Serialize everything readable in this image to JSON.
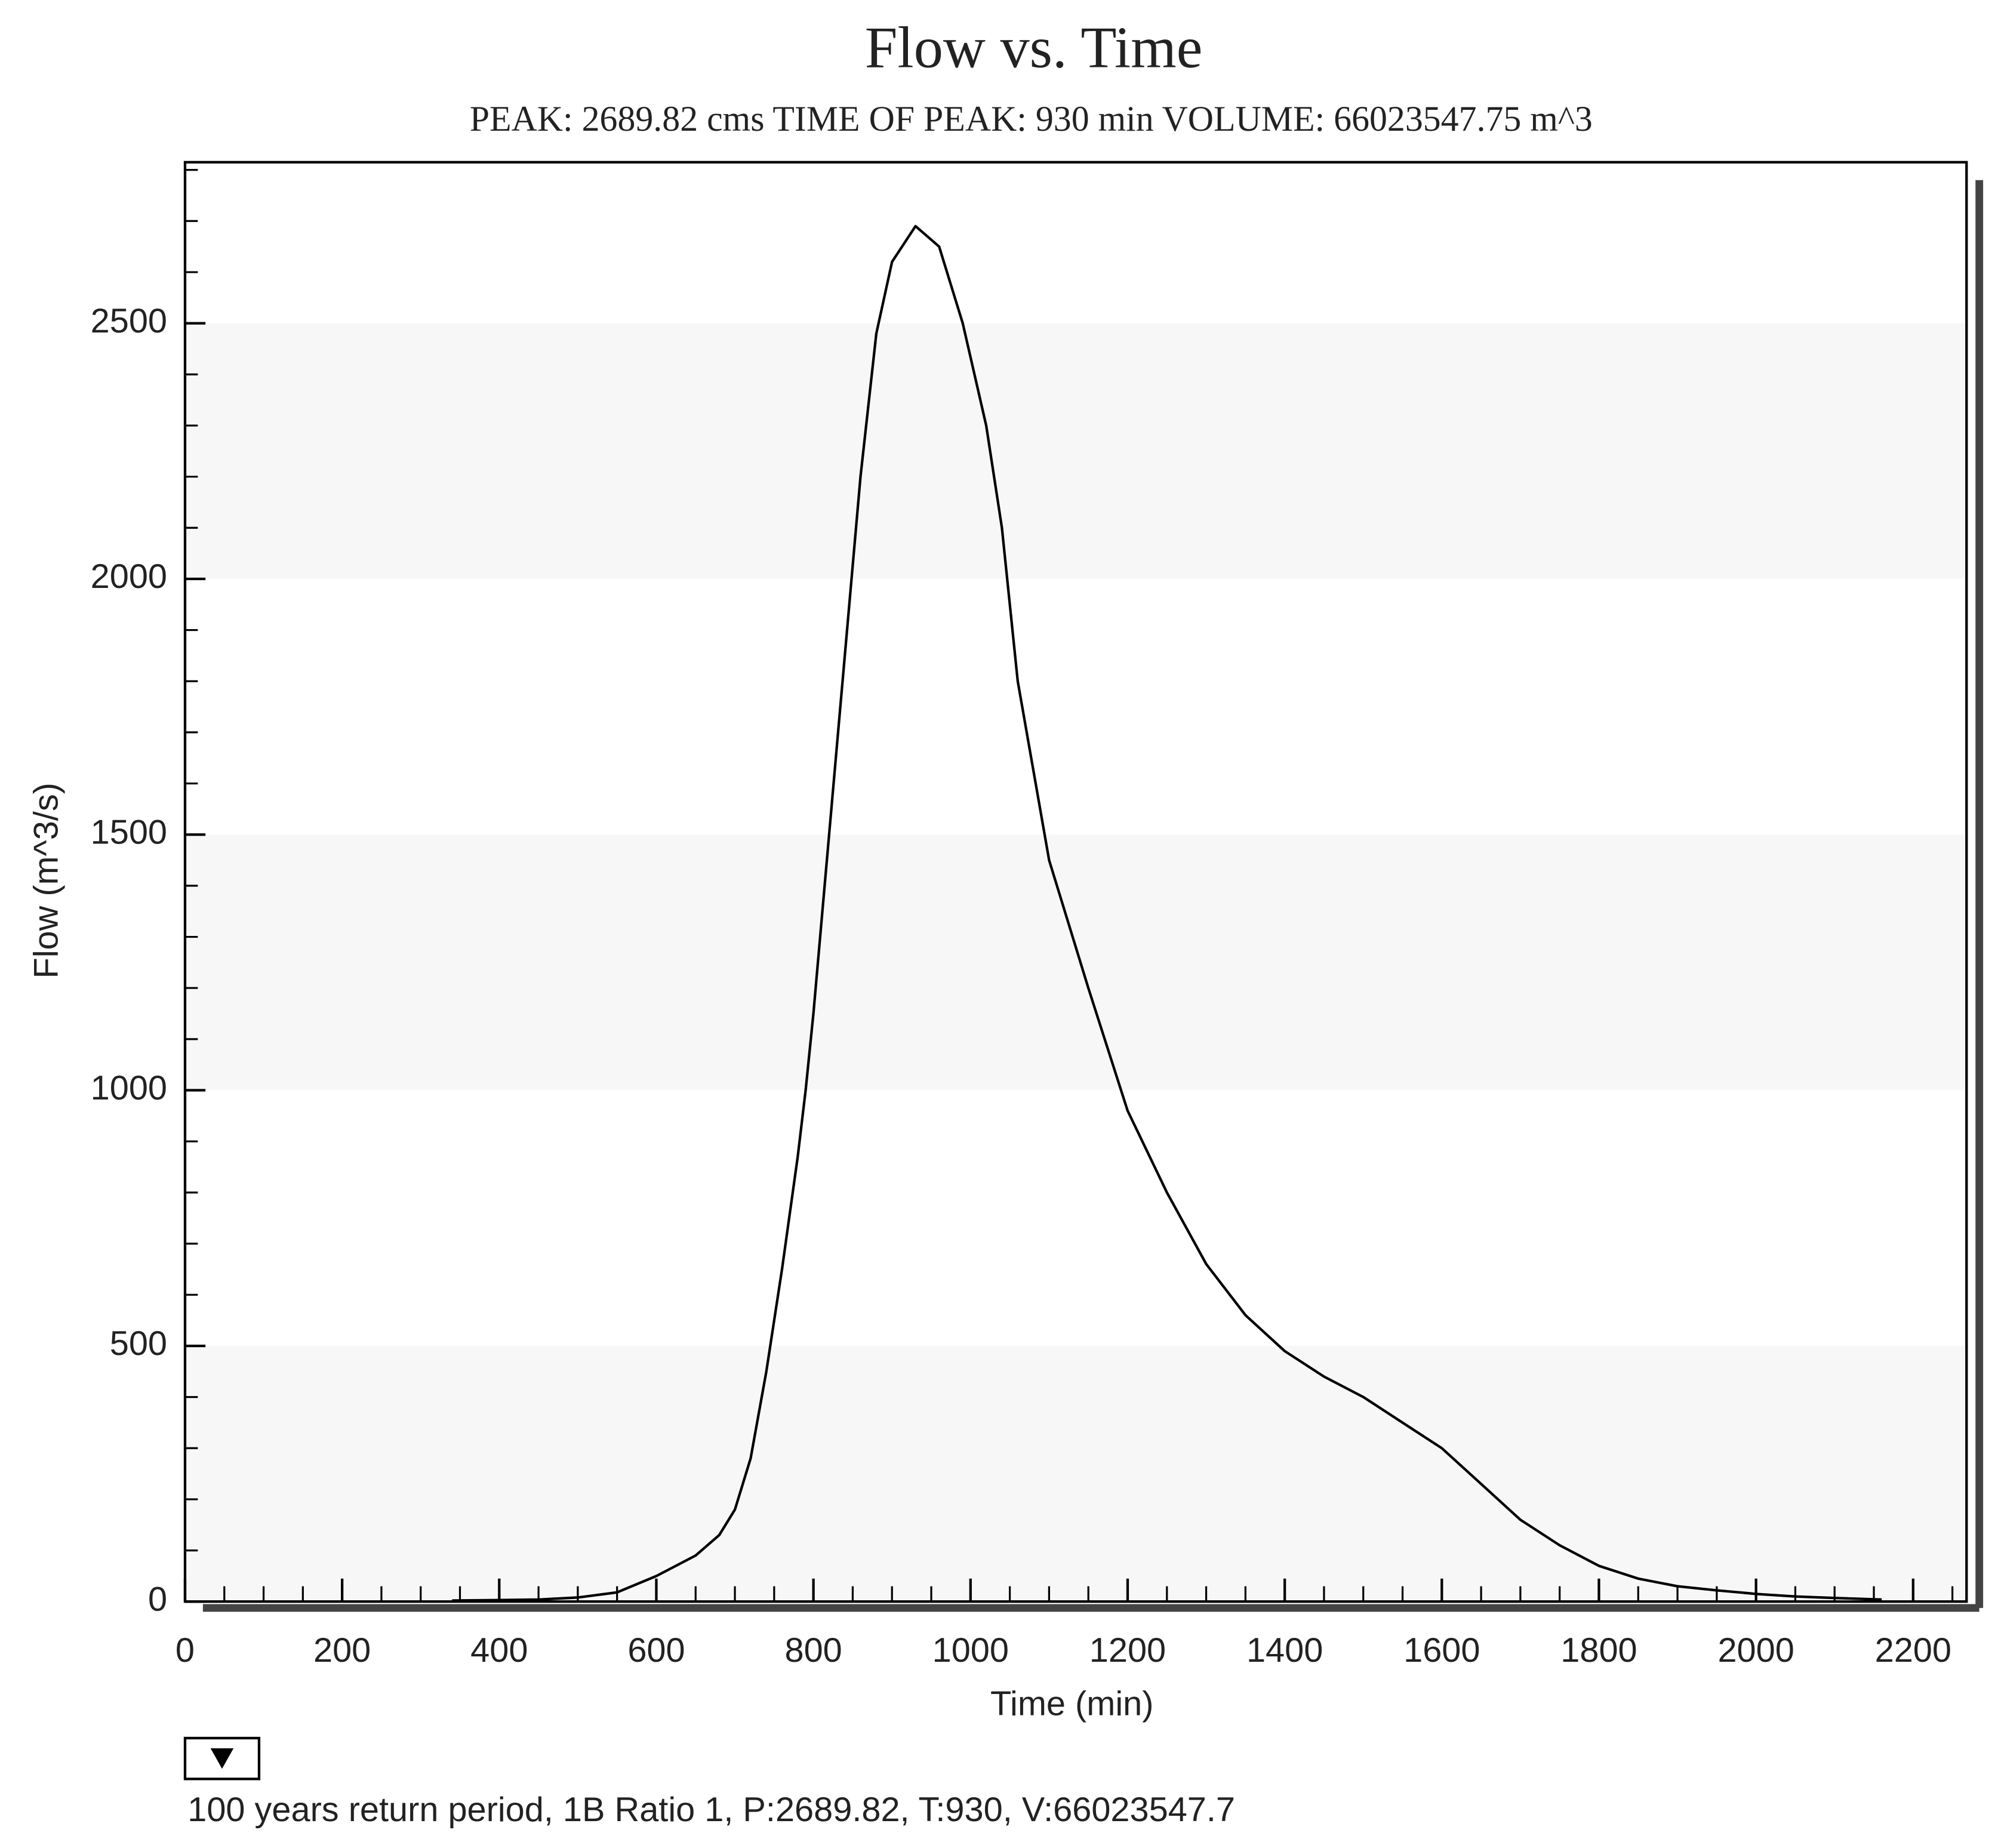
{
  "chart_data": {
    "type": "line",
    "title": "Flow vs. Time",
    "subtitle": "PEAK: 2689.82 cms  TIME OF PEAK: 930 min  VOLUME: 66023547.75 m^3",
    "x_label": "Time (min)",
    "y_label": "Flow (m^3/s)",
    "x": [
      340,
      400,
      450,
      500,
      550,
      600,
      650,
      680,
      700,
      720,
      740,
      760,
      780,
      790,
      800,
      820,
      840,
      860,
      880,
      900,
      930,
      960,
      990,
      1020,
      1040,
      1060,
      1100,
      1150,
      1200,
      1250,
      1300,
      1350,
      1400,
      1450,
      1500,
      1550,
      1600,
      1650,
      1700,
      1750,
      1800,
      1850,
      1900,
      1950,
      2000,
      2050,
      2100,
      2160
    ],
    "series": [
      {
        "name": "100 years return period, 1B Ratio 1, P:2689.82, T:930, V:66023547.7",
        "color": "#000000",
        "values": [
          2,
          3,
          4,
          8,
          18,
          50,
          90,
          130,
          180,
          280,
          450,
          650,
          870,
          1000,
          1150,
          1500,
          1850,
          2200,
          2480,
          2620,
          2690,
          2650,
          2500,
          2300,
          2100,
          1800,
          1450,
          1200,
          960,
          800,
          660,
          560,
          490,
          440,
          400,
          350,
          300,
          230,
          160,
          110,
          70,
          45,
          30,
          22,
          15,
          10,
          7,
          4
        ]
      }
    ],
    "xlim": [
      0,
      2268
    ],
    "ylim": [
      0,
      2815
    ],
    "xticks": [
      0,
      200,
      400,
      600,
      800,
      1000,
      1200,
      1400,
      1600,
      1800,
      2000,
      2200
    ],
    "yticks": [
      0,
      500,
      1000,
      1500,
      2000,
      2500
    ]
  }
}
